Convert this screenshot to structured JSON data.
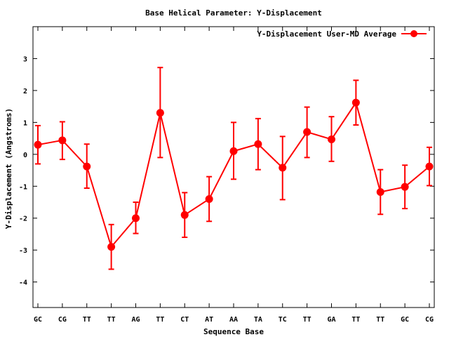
{
  "chart_data": {
    "type": "line",
    "title": "Base  Helical Parameter: Y-Displacement",
    "xlabel": "Sequence Base",
    "ylabel": "Y-Displacement (Angstroms)",
    "ylim": [
      -4.8,
      4.0
    ],
    "yticks": [
      -4,
      -3,
      -2,
      -1,
      0,
      1,
      2,
      3
    ],
    "categories": [
      "GC",
      "CG",
      "TT",
      "TT",
      "AG",
      "TT",
      "CT",
      "AT",
      "AA",
      "TA",
      "TC",
      "TT",
      "GA",
      "TT",
      "TT",
      "GC",
      "CG"
    ],
    "series": [
      {
        "name": "Y-Displacement User-MD Average",
        "color": "#ff0000",
        "values": [
          0.3,
          0.44,
          -0.38,
          -2.9,
          -2.0,
          1.3,
          -1.9,
          -1.4,
          0.1,
          0.32,
          -0.42,
          0.7,
          0.47,
          1.62,
          -1.18,
          -1.02,
          -0.38
        ],
        "err_low": [
          -0.3,
          -0.16,
          -1.06,
          -3.6,
          -2.48,
          -0.1,
          -2.6,
          -2.1,
          -0.78,
          -0.48,
          -1.42,
          -0.1,
          -0.22,
          0.92,
          -1.88,
          -1.7,
          -0.98
        ],
        "err_high": [
          0.9,
          1.02,
          0.32,
          -2.2,
          -1.5,
          2.72,
          -1.2,
          -0.7,
          1.0,
          1.12,
          0.56,
          1.48,
          1.18,
          2.32,
          -0.48,
          -0.34,
          0.22
        ]
      }
    ],
    "legend_position": "top-right",
    "grid": false
  }
}
